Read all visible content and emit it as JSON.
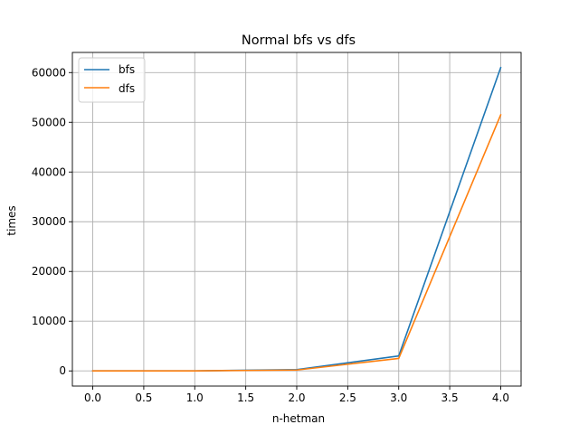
{
  "chart_data": {
    "type": "line",
    "title": "Normal bfs vs dfs",
    "xlabel": "n-hetman",
    "ylabel": "times",
    "x": [
      0,
      1,
      2,
      3,
      4
    ],
    "series": [
      {
        "name": "bfs",
        "color": "#1f77b4",
        "values": [
          0,
          10,
          250,
          3000,
          61000
        ]
      },
      {
        "name": "dfs",
        "color": "#ff7f0e",
        "values": [
          0,
          5,
          180,
          2500,
          51500
        ]
      }
    ],
    "xlim": [
      -0.2,
      4.2
    ],
    "ylim": [
      -3050,
      64050
    ],
    "xticks": [
      0.0,
      0.5,
      1.0,
      1.5,
      2.0,
      2.5,
      3.0,
      3.5,
      4.0
    ],
    "xtick_labels": [
      "0.0",
      "0.5",
      "1.0",
      "1.5",
      "2.0",
      "2.5",
      "3.0",
      "3.5",
      "4.0"
    ],
    "yticks": [
      0,
      10000,
      20000,
      30000,
      40000,
      50000,
      60000
    ],
    "ytick_labels": [
      "0",
      "10000",
      "20000",
      "30000",
      "40000",
      "50000",
      "60000"
    ],
    "grid": true,
    "legend": "upper-left"
  }
}
